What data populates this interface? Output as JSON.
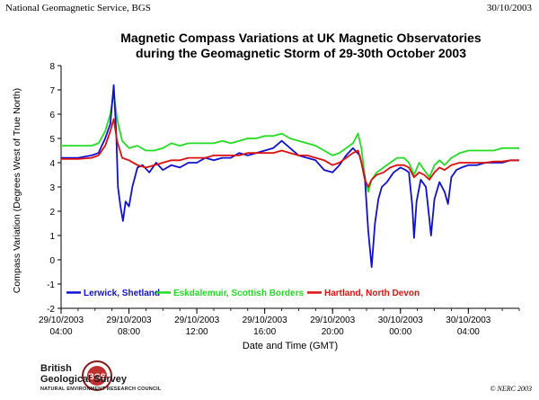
{
  "header": {
    "left": "National Geomagnetic Service, BGS",
    "right": "30/10/2003"
  },
  "footer": {
    "copyright": "© NERC 2003",
    "logo_line1": "British",
    "logo_line2": "Geological Survey",
    "logo_line3": "NATURAL ENVIRONMENT RESEARCH COUNCIL",
    "logo_badge": "BGS"
  },
  "chart_data": {
    "type": "line",
    "title": "Magnetic Compass Variations at UK Magnetic Observatories",
    "subtitle": "during the Geomagnetic Storm of 29-30th October 2003",
    "xlabel": "Date and Time (GMT)",
    "ylabel": "Compass Variation (Degrees West of True North)",
    "ylim": [
      -2,
      8
    ],
    "yticks": [
      -2,
      -1,
      0,
      1,
      2,
      3,
      4,
      5,
      6,
      7,
      8
    ],
    "xlim_hours": [
      4,
      31
    ],
    "xticks": [
      {
        "hour": 4,
        "date": "29/10/2003",
        "time": "04:00"
      },
      {
        "hour": 8,
        "date": "29/10/2003",
        "time": "08:00"
      },
      {
        "hour": 12,
        "date": "29/10/2003",
        "time": "12:00"
      },
      {
        "hour": 16,
        "date": "29/10/2003",
        "time": "16:00"
      },
      {
        "hour": 20,
        "date": "29/10/2003",
        "time": "20:00"
      },
      {
        "hour": 24,
        "date": "30/10/2003",
        "time": "00:00"
      },
      {
        "hour": 28,
        "date": "30/10/2003",
        "time": "04:00"
      }
    ],
    "legend_position": "bottom-inside",
    "series": [
      {
        "name": "Lerwick, Shetland",
        "color": "#1010d0",
        "points": [
          [
            4.0,
            4.2
          ],
          [
            5.0,
            4.2
          ],
          [
            5.8,
            4.3
          ],
          [
            6.2,
            4.4
          ],
          [
            6.6,
            5.0
          ],
          [
            6.9,
            5.6
          ],
          [
            7.1,
            7.2
          ],
          [
            7.25,
            5.2
          ],
          [
            7.35,
            3.0
          ],
          [
            7.5,
            2.2
          ],
          [
            7.65,
            1.6
          ],
          [
            7.8,
            2.4
          ],
          [
            8.0,
            2.2
          ],
          [
            8.2,
            3.0
          ],
          [
            8.5,
            3.8
          ],
          [
            8.8,
            3.9
          ],
          [
            9.2,
            3.6
          ],
          [
            9.6,
            4.0
          ],
          [
            10.0,
            3.7
          ],
          [
            10.5,
            3.9
          ],
          [
            11.0,
            3.8
          ],
          [
            11.5,
            4.0
          ],
          [
            12.0,
            4.0
          ],
          [
            12.5,
            4.2
          ],
          [
            13.0,
            4.1
          ],
          [
            13.5,
            4.2
          ],
          [
            14.0,
            4.2
          ],
          [
            14.5,
            4.4
          ],
          [
            15.0,
            4.3
          ],
          [
            15.5,
            4.4
          ],
          [
            16.0,
            4.5
          ],
          [
            16.5,
            4.6
          ],
          [
            17.0,
            4.9
          ],
          [
            17.5,
            4.6
          ],
          [
            18.0,
            4.3
          ],
          [
            18.5,
            4.2
          ],
          [
            19.0,
            4.1
          ],
          [
            19.5,
            3.7
          ],
          [
            20.0,
            3.6
          ],
          [
            20.4,
            3.9
          ],
          [
            20.8,
            4.3
          ],
          [
            21.2,
            4.6
          ],
          [
            21.6,
            4.3
          ],
          [
            21.9,
            3.4
          ],
          [
            22.1,
            1.2
          ],
          [
            22.3,
            -0.3
          ],
          [
            22.5,
            1.5
          ],
          [
            22.7,
            2.5
          ],
          [
            22.9,
            3.0
          ],
          [
            23.2,
            3.2
          ],
          [
            23.6,
            3.6
          ],
          [
            24.0,
            3.8
          ],
          [
            24.3,
            3.7
          ],
          [
            24.5,
            3.6
          ],
          [
            24.7,
            2.2
          ],
          [
            24.8,
            0.9
          ],
          [
            24.95,
            2.4
          ],
          [
            25.2,
            3.3
          ],
          [
            25.5,
            3.0
          ],
          [
            25.7,
            1.7
          ],
          [
            25.8,
            1.0
          ],
          [
            26.0,
            2.5
          ],
          [
            26.3,
            3.2
          ],
          [
            26.6,
            2.8
          ],
          [
            26.8,
            2.3
          ],
          [
            27.0,
            3.4
          ],
          [
            27.3,
            3.7
          ],
          [
            27.6,
            3.8
          ],
          [
            28.0,
            3.9
          ],
          [
            28.5,
            3.9
          ],
          [
            29.0,
            4.0
          ],
          [
            29.5,
            4.0
          ],
          [
            30.0,
            4.0
          ],
          [
            30.5,
            4.1
          ],
          [
            31.0,
            4.1
          ]
        ]
      },
      {
        "name": "Eskdalemuir, Scottish Borders",
        "color": "#22dd22",
        "points": [
          [
            4.0,
            4.7
          ],
          [
            5.0,
            4.7
          ],
          [
            5.8,
            4.7
          ],
          [
            6.2,
            4.8
          ],
          [
            6.6,
            5.3
          ],
          [
            6.9,
            6.0
          ],
          [
            7.1,
            6.9
          ],
          [
            7.3,
            5.8
          ],
          [
            7.6,
            4.9
          ],
          [
            8.0,
            4.6
          ],
          [
            8.5,
            4.7
          ],
          [
            9.0,
            4.5
          ],
          [
            9.5,
            4.5
          ],
          [
            10.0,
            4.6
          ],
          [
            10.5,
            4.8
          ],
          [
            11.0,
            4.7
          ],
          [
            11.5,
            4.8
          ],
          [
            12.0,
            4.8
          ],
          [
            12.5,
            4.8
          ],
          [
            13.0,
            4.8
          ],
          [
            13.5,
            4.9
          ],
          [
            14.0,
            4.8
          ],
          [
            14.5,
            4.9
          ],
          [
            15.0,
            5.0
          ],
          [
            15.5,
            5.0
          ],
          [
            16.0,
            5.1
          ],
          [
            16.5,
            5.1
          ],
          [
            17.0,
            5.2
          ],
          [
            17.5,
            5.0
          ],
          [
            18.0,
            4.9
          ],
          [
            18.5,
            4.8
          ],
          [
            19.0,
            4.7
          ],
          [
            19.5,
            4.5
          ],
          [
            20.0,
            4.3
          ],
          [
            20.4,
            4.4
          ],
          [
            20.8,
            4.6
          ],
          [
            21.2,
            4.8
          ],
          [
            21.5,
            5.2
          ],
          [
            21.7,
            4.6
          ],
          [
            21.9,
            3.4
          ],
          [
            22.1,
            2.8
          ],
          [
            22.3,
            3.3
          ],
          [
            22.6,
            3.6
          ],
          [
            23.0,
            3.8
          ],
          [
            23.4,
            4.0
          ],
          [
            23.8,
            4.2
          ],
          [
            24.2,
            4.2
          ],
          [
            24.5,
            4.0
          ],
          [
            24.8,
            3.5
          ],
          [
            25.1,
            4.0
          ],
          [
            25.4,
            3.7
          ],
          [
            25.7,
            3.4
          ],
          [
            26.0,
            3.9
          ],
          [
            26.3,
            4.1
          ],
          [
            26.6,
            3.9
          ],
          [
            27.0,
            4.2
          ],
          [
            27.5,
            4.4
          ],
          [
            28.0,
            4.5
          ],
          [
            28.5,
            4.5
          ],
          [
            29.0,
            4.5
          ],
          [
            29.5,
            4.5
          ],
          [
            30.0,
            4.6
          ],
          [
            30.5,
            4.6
          ],
          [
            31.0,
            4.6
          ]
        ]
      },
      {
        "name": "Hartland, North Devon",
        "color": "#dd1010",
        "points": [
          [
            4.0,
            4.15
          ],
          [
            5.0,
            4.15
          ],
          [
            5.8,
            4.2
          ],
          [
            6.2,
            4.3
          ],
          [
            6.6,
            4.7
          ],
          [
            6.9,
            5.3
          ],
          [
            7.1,
            5.8
          ],
          [
            7.3,
            4.9
          ],
          [
            7.6,
            4.2
          ],
          [
            8.0,
            4.1
          ],
          [
            8.5,
            3.9
          ],
          [
            9.0,
            3.8
          ],
          [
            9.5,
            3.9
          ],
          [
            10.0,
            4.0
          ],
          [
            10.5,
            4.1
          ],
          [
            11.0,
            4.1
          ],
          [
            11.5,
            4.2
          ],
          [
            12.0,
            4.2
          ],
          [
            12.5,
            4.2
          ],
          [
            13.0,
            4.3
          ],
          [
            13.5,
            4.3
          ],
          [
            14.0,
            4.3
          ],
          [
            14.5,
            4.3
          ],
          [
            15.0,
            4.4
          ],
          [
            15.5,
            4.4
          ],
          [
            16.0,
            4.4
          ],
          [
            16.5,
            4.4
          ],
          [
            17.0,
            4.5
          ],
          [
            17.5,
            4.4
          ],
          [
            18.0,
            4.3
          ],
          [
            18.5,
            4.3
          ],
          [
            19.0,
            4.2
          ],
          [
            19.5,
            4.1
          ],
          [
            20.0,
            3.9
          ],
          [
            20.4,
            4.0
          ],
          [
            20.8,
            4.2
          ],
          [
            21.2,
            4.4
          ],
          [
            21.5,
            4.5
          ],
          [
            21.7,
            4.0
          ],
          [
            21.9,
            3.3
          ],
          [
            22.1,
            3.0
          ],
          [
            22.3,
            3.3
          ],
          [
            22.6,
            3.5
          ],
          [
            23.0,
            3.6
          ],
          [
            23.4,
            3.8
          ],
          [
            23.8,
            3.9
          ],
          [
            24.2,
            3.9
          ],
          [
            24.5,
            3.8
          ],
          [
            24.8,
            3.4
          ],
          [
            25.1,
            3.6
          ],
          [
            25.4,
            3.5
          ],
          [
            25.7,
            3.3
          ],
          [
            26.0,
            3.6
          ],
          [
            26.3,
            3.8
          ],
          [
            26.6,
            3.7
          ],
          [
            27.0,
            3.9
          ],
          [
            27.5,
            4.0
          ],
          [
            28.0,
            4.0
          ],
          [
            28.5,
            4.0
          ],
          [
            29.0,
            4.0
          ],
          [
            29.5,
            4.05
          ],
          [
            30.0,
            4.05
          ],
          [
            30.5,
            4.1
          ],
          [
            31.0,
            4.1
          ]
        ]
      }
    ]
  }
}
